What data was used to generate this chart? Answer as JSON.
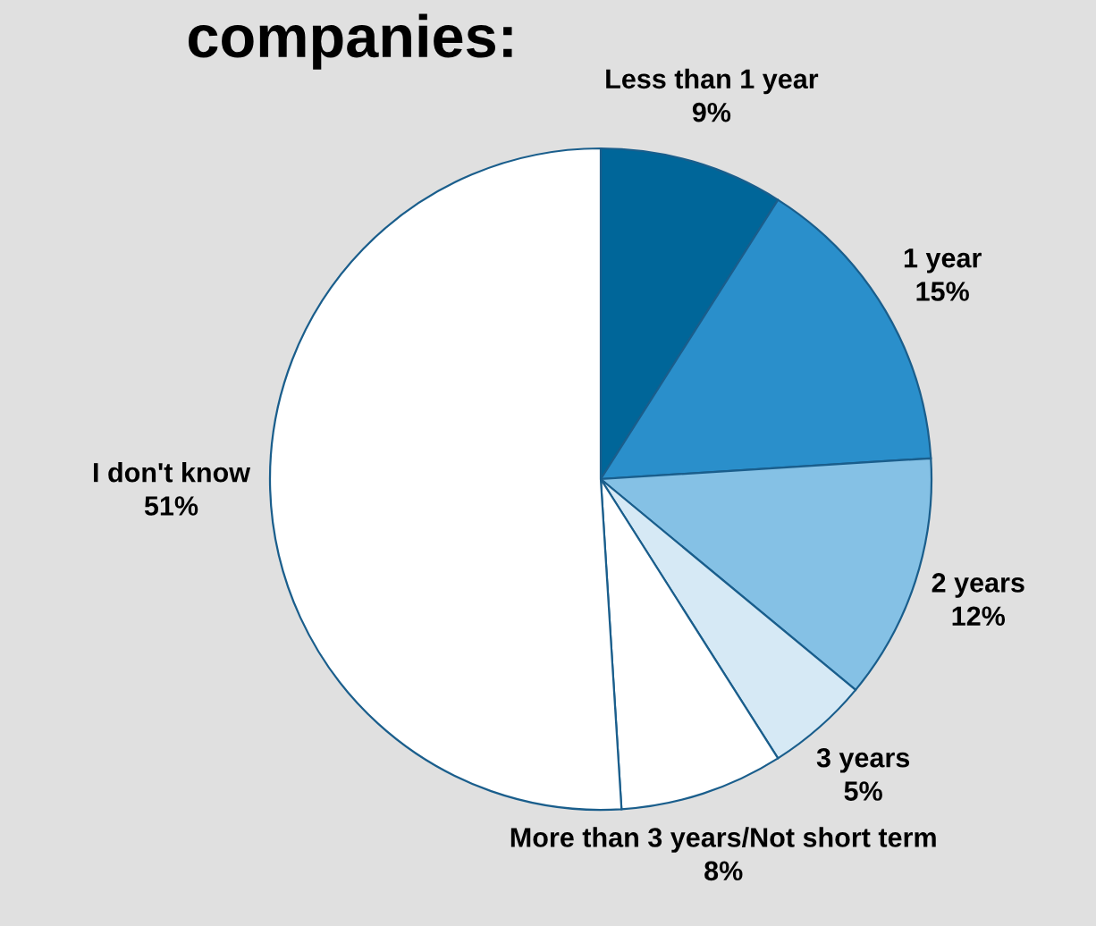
{
  "chart_data": {
    "type": "pie",
    "title": "companies:",
    "categories": [
      "Less than 1 year",
      "1 year",
      "2 years",
      "3 years",
      "More than 3 years/Not short term",
      "I don't know"
    ],
    "values": [
      9,
      15,
      12,
      5,
      8,
      51
    ],
    "colors": [
      "#006699",
      "#2a8fcb",
      "#85c1e5",
      "#d6e9f5",
      "#ffffff",
      "#ffffff"
    ],
    "value_labels": [
      "9%",
      "15%",
      "12%",
      "5%",
      "8%",
      "51%"
    ]
  }
}
